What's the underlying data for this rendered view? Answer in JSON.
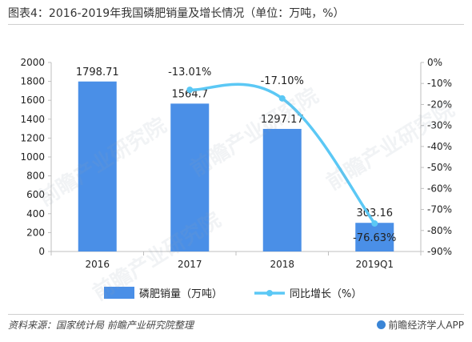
{
  "header": {
    "title": "图表4：2016-2019年我国磷肥销量及增长情况（单位：万吨，%）"
  },
  "footer": {
    "source": "资料来源：国家统计局 前瞻产业研究院整理",
    "brand": "前瞻经济学人APP"
  },
  "watermark": {
    "text": "前瞻产业研究院"
  },
  "colors": {
    "bar": "#4a8fe7",
    "line": "#5bc8f5",
    "axis": "#bfbfbf",
    "text": "#222222"
  },
  "chart_data": {
    "type": "bar",
    "categories": [
      "2016",
      "2017",
      "2018",
      "2019Q1"
    ],
    "series": [
      {
        "name": "磷肥销量（万吨）",
        "type": "bar",
        "axis": "left",
        "values": [
          1798.71,
          1564.7,
          1297.17,
          303.16
        ],
        "labels": [
          "1798.71",
          "1564.7",
          "1297.17",
          "303.16"
        ]
      },
      {
        "name": "同比增长（%）",
        "type": "line",
        "axis": "right",
        "values": [
          null,
          -13.01,
          -17.1,
          -76.63
        ],
        "labels": [
          "",
          "-13.01%",
          "-17.10%",
          "-76.63%"
        ]
      }
    ],
    "left_axis": {
      "ylim": [
        0,
        2000
      ],
      "ticks": [
        0,
        200,
        400,
        600,
        800,
        1000,
        1200,
        1400,
        1600,
        1800,
        2000
      ]
    },
    "right_axis": {
      "ylim": [
        -90,
        0
      ],
      "ticks": [
        "0%",
        "-10%",
        "-20%",
        "-30%",
        "-40%",
        "-50%",
        "-60%",
        "-70%",
        "-80%",
        "-90%"
      ]
    },
    "legend": "bottom-center",
    "grid": false
  }
}
